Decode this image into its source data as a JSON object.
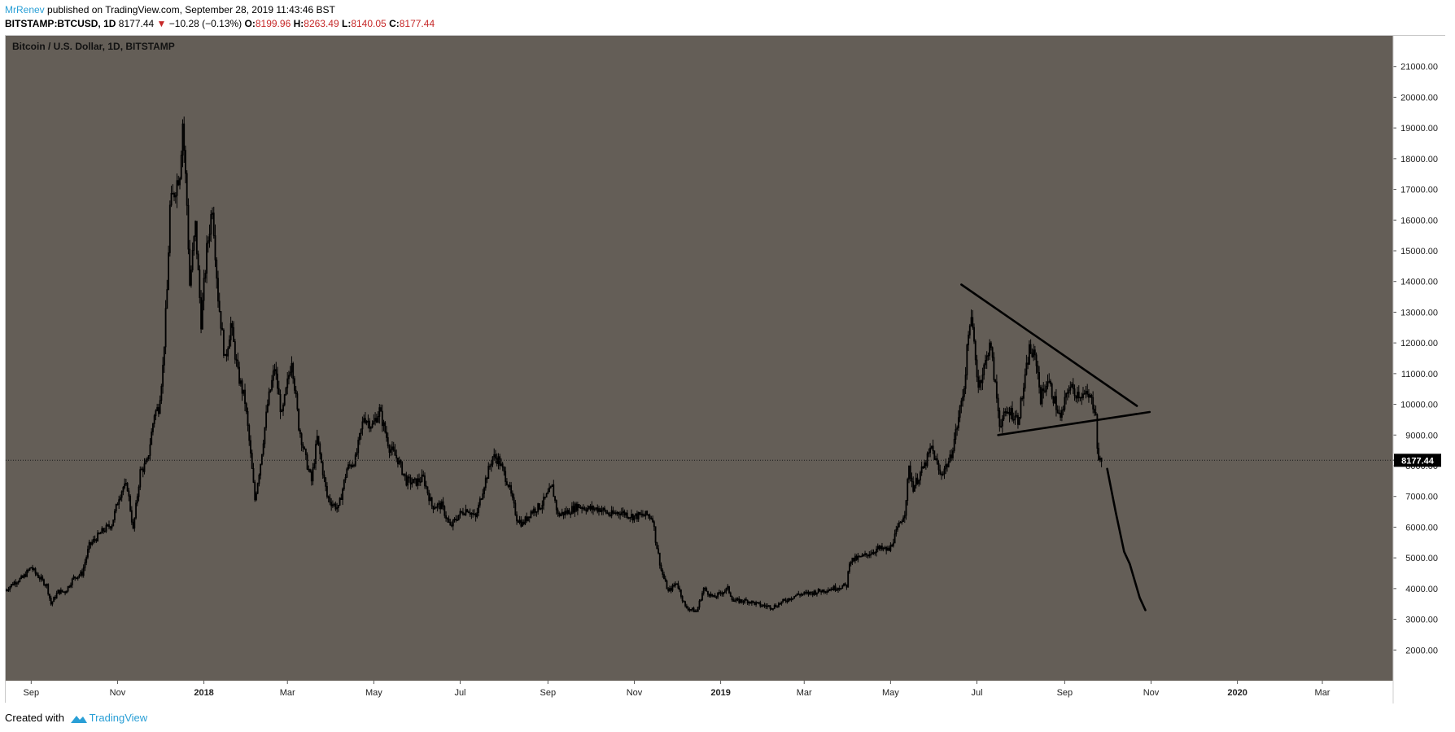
{
  "header": {
    "author": "MrRenev",
    "published_text": "published on TradingView.com, September 28, 2019 11:43:46 BST",
    "symbol_line": {
      "symbol": "BITSTAMP:BTCUSD, 1D",
      "last": "8177.44",
      "change": "−10.28 (−0.13%)",
      "o_label": "O:",
      "o_value": "8199.96",
      "h_label": "H:",
      "h_value": "8263.49",
      "l_label": "L:",
      "l_value": "8140.05",
      "c_label": "C:",
      "c_value": "8177.44"
    }
  },
  "footer": {
    "created_with": "Created with",
    "brand": "TradingView"
  },
  "colors": {
    "plot_bg": "#645e57",
    "axis_bg": "#ffffff",
    "candle": "#000000",
    "price_tag_bg": "#000000",
    "brand": "#2a9fd6",
    "change_down": "#c62828"
  },
  "chart_data": {
    "type": "line",
    "title": "Bitcoin / U.S. Dollar, 1D, BITSTAMP",
    "xlabel": "",
    "ylabel": "",
    "ylim": [
      1000,
      22000
    ],
    "y_ticks": [
      "2000.00",
      "3000.00",
      "4000.00",
      "5000.00",
      "6000.00",
      "7000.00",
      "8000.00",
      "9000.00",
      "10000.00",
      "11000.00",
      "12000.00",
      "13000.00",
      "14000.00",
      "15000.00",
      "16000.00",
      "17000.00",
      "18000.00",
      "19000.00",
      "20000.00",
      "21000.00"
    ],
    "x_ticks": [
      {
        "label": "Sep",
        "date": "2017-09-01"
      },
      {
        "label": "Nov",
        "date": "2017-11-01"
      },
      {
        "label": "2018",
        "date": "2018-01-01"
      },
      {
        "label": "Mar",
        "date": "2018-03-01"
      },
      {
        "label": "May",
        "date": "2018-05-01"
      },
      {
        "label": "Jul",
        "date": "2018-07-01"
      },
      {
        "label": "Sep",
        "date": "2018-09-01"
      },
      {
        "label": "Nov",
        "date": "2018-11-01"
      },
      {
        "label": "2019",
        "date": "2019-01-01"
      },
      {
        "label": "Mar",
        "date": "2019-03-01"
      },
      {
        "label": "May",
        "date": "2019-05-01"
      },
      {
        "label": "Jul",
        "date": "2019-07-01"
      },
      {
        "label": "Sep",
        "date": "2019-09-01"
      },
      {
        "label": "Nov",
        "date": "2019-11-01"
      },
      {
        "label": "2020",
        "date": "2020-01-01"
      },
      {
        "label": "Mar",
        "date": "2020-03-01"
      }
    ],
    "x_range": [
      "2017-08-14",
      "2020-04-20"
    ],
    "last_price": 8177.44,
    "last_price_label": "8177.44",
    "series": [
      {
        "style": "candles",
        "points": [
          [
            "2017-08-14",
            3950
          ],
          [
            "2017-08-20",
            4200
          ],
          [
            "2017-08-26",
            4350
          ],
          [
            "2017-09-01",
            4700
          ],
          [
            "2017-09-04",
            4500
          ],
          [
            "2017-09-08",
            4300
          ],
          [
            "2017-09-12",
            4100
          ],
          [
            "2017-09-15",
            3500
          ],
          [
            "2017-09-20",
            3900
          ],
          [
            "2017-09-25",
            3900
          ],
          [
            "2017-10-01",
            4350
          ],
          [
            "2017-10-07",
            4500
          ],
          [
            "2017-10-12",
            5400
          ],
          [
            "2017-10-16",
            5600
          ],
          [
            "2017-10-22",
            5900
          ],
          [
            "2017-10-28",
            6100
          ],
          [
            "2017-11-02",
            7000
          ],
          [
            "2017-11-05",
            7300
          ],
          [
            "2017-11-08",
            7300
          ],
          [
            "2017-11-12",
            5900
          ],
          [
            "2017-11-17",
            7800
          ],
          [
            "2017-11-22",
            8100
          ],
          [
            "2017-11-27",
            9700
          ],
          [
            "2017-11-30",
            9900
          ],
          [
            "2017-12-03",
            11200
          ],
          [
            "2017-12-06",
            13700
          ],
          [
            "2017-12-08",
            16400
          ],
          [
            "2017-12-12",
            17100
          ],
          [
            "2017-12-15",
            17600
          ],
          [
            "2017-12-17",
            19200
          ],
          [
            "2017-12-20",
            16500
          ],
          [
            "2017-12-22",
            13900
          ],
          [
            "2017-12-26",
            15800
          ],
          [
            "2017-12-30",
            12700
          ],
          [
            "2018-01-03",
            15000
          ],
          [
            "2018-01-07",
            16500
          ],
          [
            "2018-01-11",
            13500
          ],
          [
            "2018-01-16",
            11400
          ],
          [
            "2018-01-20",
            12600
          ],
          [
            "2018-01-25",
            11000
          ],
          [
            "2018-01-30",
            10100
          ],
          [
            "2018-02-02",
            8800
          ],
          [
            "2018-02-06",
            6900
          ],
          [
            "2018-02-10",
            8100
          ],
          [
            "2018-02-15",
            10000
          ],
          [
            "2018-02-20",
            11200
          ],
          [
            "2018-02-25",
            9600
          ],
          [
            "2018-03-04",
            11500
          ],
          [
            "2018-03-09",
            9300
          ],
          [
            "2018-03-14",
            8200
          ],
          [
            "2018-03-18",
            7500
          ],
          [
            "2018-03-22",
            8900
          ],
          [
            "2018-03-29",
            7000
          ],
          [
            "2018-04-01",
            6800
          ],
          [
            "2018-04-06",
            6600
          ],
          [
            "2018-04-12",
            7900
          ],
          [
            "2018-04-18",
            8200
          ],
          [
            "2018-04-24",
            9600
          ],
          [
            "2018-04-30",
            9300
          ],
          [
            "2018-05-05",
            9800
          ],
          [
            "2018-05-12",
            8600
          ],
          [
            "2018-05-18",
            8200
          ],
          [
            "2018-05-24",
            7500
          ],
          [
            "2018-05-30",
            7450
          ],
          [
            "2018-06-05",
            7600
          ],
          [
            "2018-06-11",
            6700
          ],
          [
            "2018-06-18",
            6700
          ],
          [
            "2018-06-24",
            6000
          ],
          [
            "2018-06-30",
            6400
          ],
          [
            "2018-07-06",
            6600
          ],
          [
            "2018-07-12",
            6300
          ],
          [
            "2018-07-18",
            7400
          ],
          [
            "2018-07-24",
            8300
          ],
          [
            "2018-07-28",
            8200
          ],
          [
            "2018-08-04",
            7400
          ],
          [
            "2018-08-10",
            6300
          ],
          [
            "2018-08-14",
            6100
          ],
          [
            "2018-08-20",
            6500
          ],
          [
            "2018-08-27",
            6700
          ],
          [
            "2018-09-04",
            7300
          ],
          [
            "2018-09-08",
            6400
          ],
          [
            "2018-09-15",
            6500
          ],
          [
            "2018-09-22",
            6700
          ],
          [
            "2018-09-30",
            6600
          ],
          [
            "2018-10-08",
            6600
          ],
          [
            "2018-10-15",
            6400
          ],
          [
            "2018-10-22",
            6500
          ],
          [
            "2018-10-31",
            6350
          ],
          [
            "2018-11-10",
            6400
          ],
          [
            "2018-11-14",
            6300
          ],
          [
            "2018-11-16",
            5600
          ],
          [
            "2018-11-20",
            4600
          ],
          [
            "2018-11-25",
            3900
          ],
          [
            "2018-12-01",
            4200
          ],
          [
            "2018-12-07",
            3400
          ],
          [
            "2018-12-15",
            3250
          ],
          [
            "2018-12-20",
            4000
          ],
          [
            "2018-12-27",
            3700
          ],
          [
            "2019-01-06",
            4000
          ],
          [
            "2019-01-10",
            3600
          ],
          [
            "2019-01-20",
            3600
          ],
          [
            "2019-01-30",
            3450
          ],
          [
            "2019-02-07",
            3400
          ],
          [
            "2019-02-15",
            3600
          ],
          [
            "2019-02-24",
            3800
          ],
          [
            "2019-03-05",
            3850
          ],
          [
            "2019-03-20",
            4000
          ],
          [
            "2019-03-31",
            4100
          ],
          [
            "2019-04-02",
            4900
          ],
          [
            "2019-04-12",
            5050
          ],
          [
            "2019-04-22",
            5300
          ],
          [
            "2019-04-30",
            5250
          ],
          [
            "2019-05-11",
            6500
          ],
          [
            "2019-05-14",
            7900
          ],
          [
            "2019-05-17",
            7300
          ],
          [
            "2019-05-25",
            8000
          ],
          [
            "2019-05-30",
            8600
          ],
          [
            "2019-06-05",
            7700
          ],
          [
            "2019-06-12",
            8200
          ],
          [
            "2019-06-17",
            9300
          ],
          [
            "2019-06-22",
            10600
          ],
          [
            "2019-06-26",
            12800
          ],
          [
            "2019-06-28",
            12400
          ],
          [
            "2019-07-02",
            10600
          ],
          [
            "2019-07-08",
            11500
          ],
          [
            "2019-07-10",
            12100
          ],
          [
            "2019-07-15",
            10200
          ],
          [
            "2019-07-17",
            9400
          ],
          [
            "2019-07-24",
            9800
          ],
          [
            "2019-07-30",
            9500
          ],
          [
            "2019-08-04",
            10800
          ],
          [
            "2019-08-07",
            11800
          ],
          [
            "2019-08-12",
            11400
          ],
          [
            "2019-08-15",
            10200
          ],
          [
            "2019-08-20",
            10800
          ],
          [
            "2019-08-25",
            10100
          ],
          [
            "2019-08-29",
            9500
          ],
          [
            "2019-09-04",
            10600
          ],
          [
            "2019-09-08",
            10400
          ],
          [
            "2019-09-15",
            10300
          ],
          [
            "2019-09-19",
            10200
          ],
          [
            "2019-09-23",
            9800
          ],
          [
            "2019-09-24",
            8500
          ],
          [
            "2019-09-26",
            8100
          ],
          [
            "2019-09-28",
            8177
          ]
        ]
      },
      {
        "style": "drawing",
        "points": [
          [
            "2019-06-20",
            13900
          ],
          [
            "2019-10-22",
            9950
          ]
        ]
      },
      {
        "style": "drawing",
        "points": [
          [
            "2019-07-16",
            9000
          ],
          [
            "2019-10-31",
            9750
          ]
        ]
      },
      {
        "style": "drawing",
        "points": [
          [
            "2019-10-01",
            7900
          ],
          [
            "2019-10-07",
            6500
          ],
          [
            "2019-10-13",
            5200
          ],
          [
            "2019-10-17",
            4800
          ],
          [
            "2019-10-24",
            3700
          ],
          [
            "2019-10-28",
            3300
          ]
        ]
      }
    ]
  }
}
